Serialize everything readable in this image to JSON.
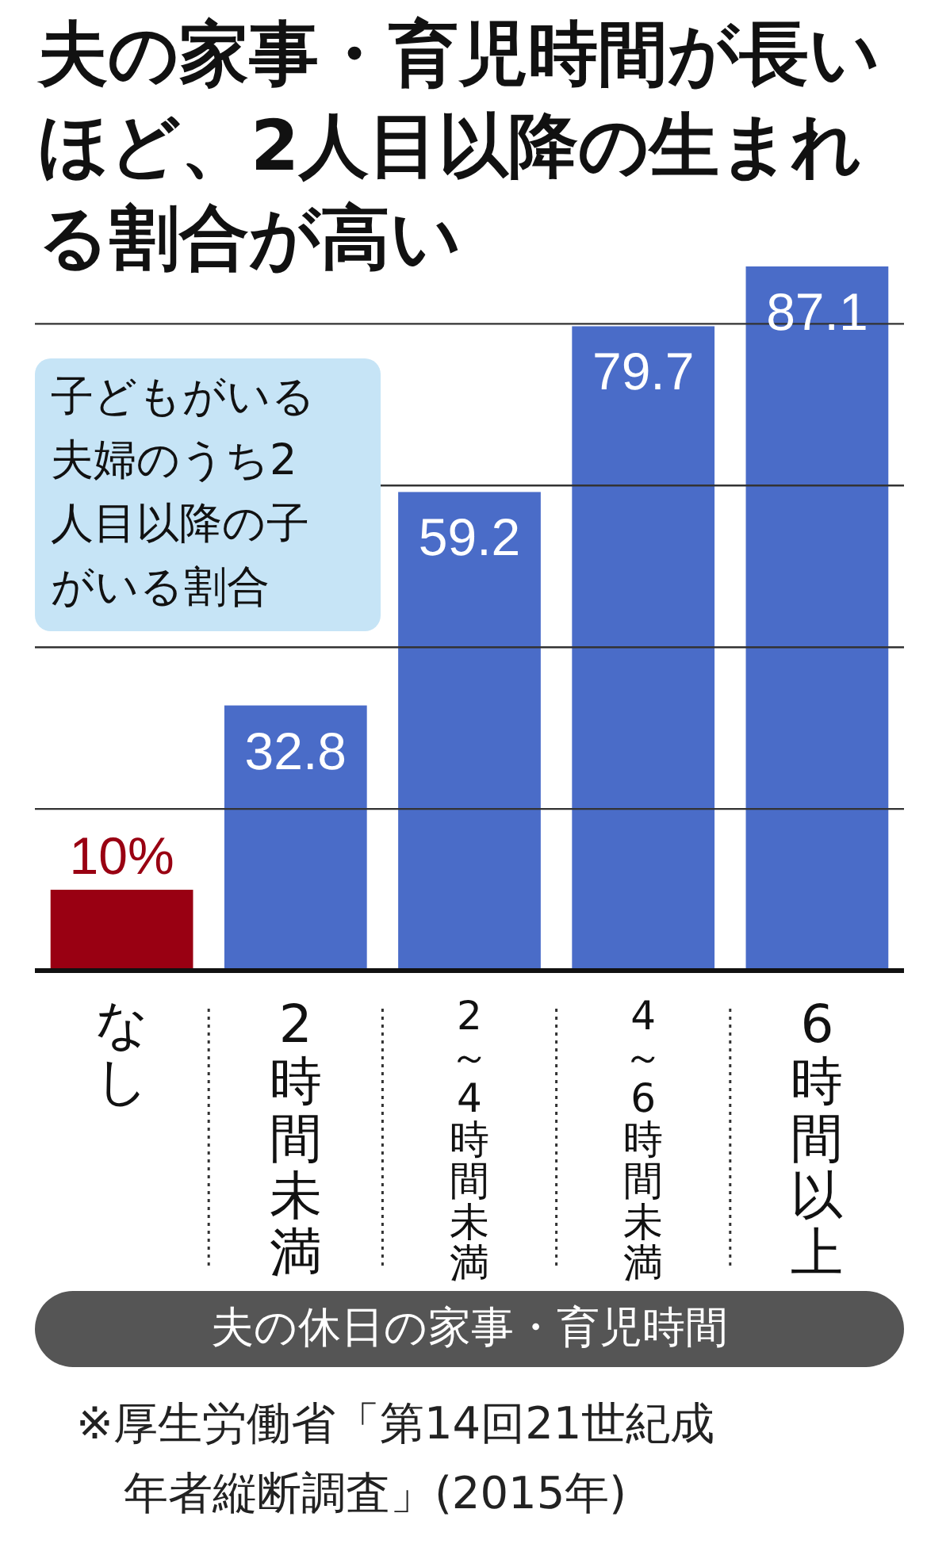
{
  "chart_data": {
    "type": "bar",
    "title": "夫の家事・育児時間が長いほど、2人目以降の生まれる割合が高い",
    "xlabel": "夫の休日の家事・育児時間",
    "categories": [
      "なし",
      "2時間未満",
      "2～4時間未満",
      "4～6時間未満",
      "6時間以上"
    ],
    "values": [
      10,
      32.8,
      59.2,
      79.7,
      87.1
    ],
    "value_labels": [
      "10%",
      "32.8",
      "59.2",
      "79.7",
      "87.1"
    ],
    "colors": [
      "#990012",
      "#4a6cc8",
      "#4a6cc8",
      "#4a6cc8",
      "#4a6cc8"
    ],
    "yticks": [
      {
        "value": 20,
        "label": null
      },
      {
        "value": 40,
        "label": null
      },
      {
        "value": 60,
        "label": null
      },
      {
        "value": 80,
        "label": null
      }
    ],
    "grid": "y",
    "tick_labels": "x",
    "annotations": [
      "子どもがいる夫婦のうち2人目以降の子がいる割合",
      "※厚生労働省「第14回21世紀成年者縦断調査」(2015年)"
    ]
  }
}
